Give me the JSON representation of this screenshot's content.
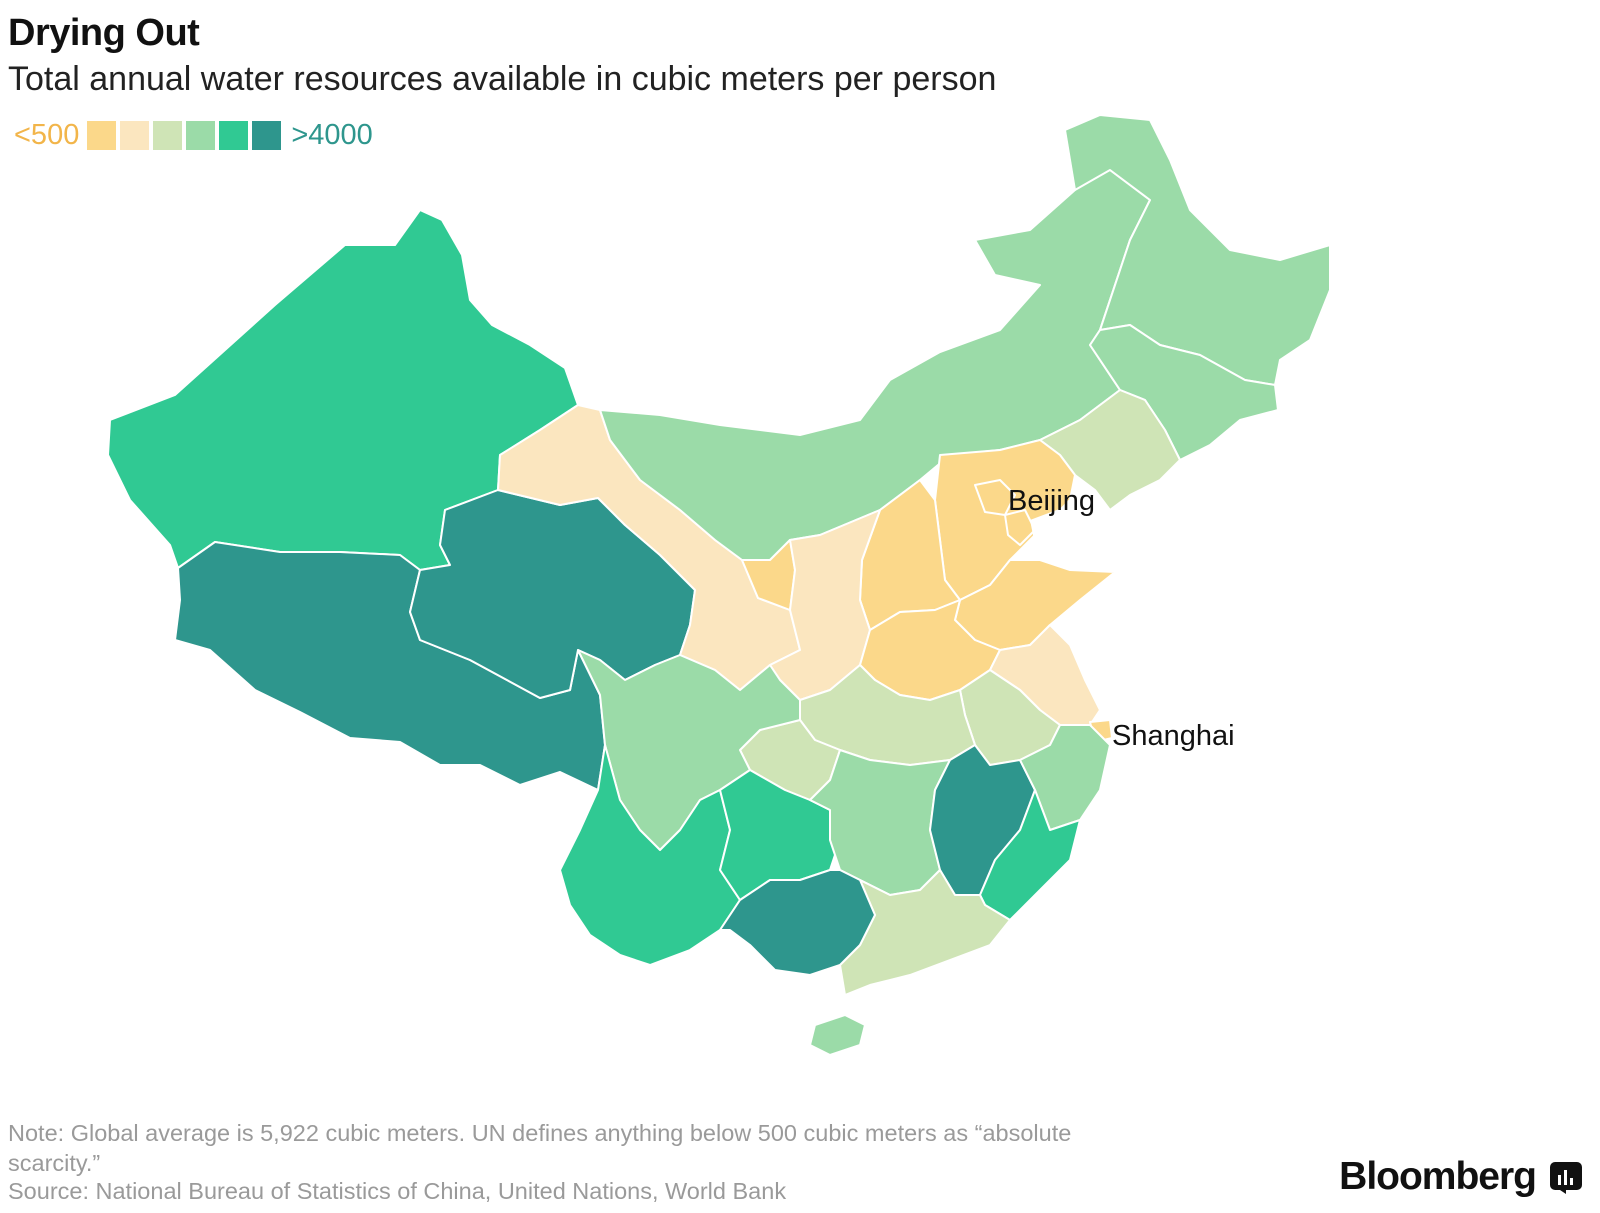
{
  "title": "Drying Out",
  "subtitle": "Total annual water resources available in cubic meters per person",
  "legend": {
    "low_label": "<500",
    "high_label": ">4000",
    "colors": [
      "#fbd88a",
      "#fbe6bf",
      "#cfe4b6",
      "#9bdba8",
      "#30c993",
      "#2e968d"
    ]
  },
  "map": {
    "labels": {
      "beijing": "Beijing",
      "shanghai": "Shanghai"
    },
    "region_classes": {
      "xinjiang": 5,
      "tibet": 6,
      "qinghai": 6,
      "gansu": 2,
      "inner_mongolia": 4,
      "heilongjiang": 4,
      "jilin": 4,
      "liaoning": 3,
      "hebei": 1,
      "beijing": 1,
      "tianjin": 1,
      "shandong": 1,
      "shanxi": 1,
      "henan": 1,
      "ningxia": 1,
      "shaanxi": 2,
      "jiangsu": 2,
      "shanghai": 1,
      "anhui": 3,
      "hubei": 3,
      "chongqing": 3,
      "sichuan": 4,
      "yunnan": 5,
      "guizhou": 5,
      "hunan": 4,
      "jiangxi": 6,
      "zhejiang": 4,
      "fujian": 5,
      "guangdong": 3,
      "guangxi": 6,
      "hainan": 4
    }
  },
  "footer": {
    "note": "Note: Global average is 5,922 cubic meters. UN defines anything below 500 cubic meters as “absolute scarcity.”",
    "source": "Source: National Bureau of Statistics of China, United Nations, World Bank",
    "brand": "Bloomberg"
  },
  "icons": {
    "brand_icon": "bloomberg-chart-icon"
  }
}
